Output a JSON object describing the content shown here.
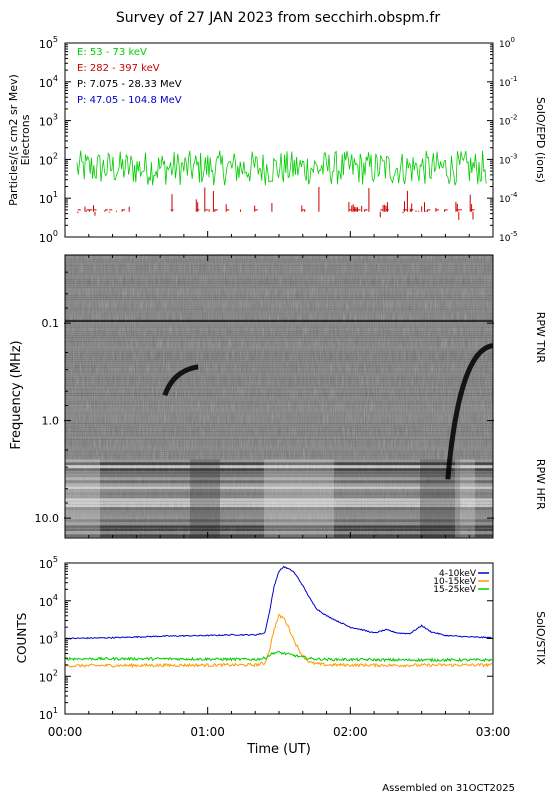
{
  "title": "Survey of 27 JAN 2023 from secchirh.obspm.fr",
  "footer": "Assembled on 31OCT2025",
  "chart_data": [
    {
      "type": "line",
      "panel": "epd",
      "ylabel": "Particles/(s cm2 sr Mev)",
      "ylabel2": "Electrons",
      "y_scale": "log",
      "ylim": [
        1,
        100000
      ],
      "y_ticks": [
        {
          "base": "10",
          "exp": "0"
        },
        {
          "base": "10",
          "exp": "1"
        },
        {
          "base": "10",
          "exp": "2"
        },
        {
          "base": "10",
          "exp": "3"
        },
        {
          "base": "10",
          "exp": "4"
        },
        {
          "base": "10",
          "exp": "5"
        }
      ],
      "right_axis": {
        "label": "SoIO/EPD (ions)",
        "ylim": [
          1e-05,
          1
        ],
        "ticks": [
          {
            "base": "10",
            "exp": "-5"
          },
          {
            "base": "10",
            "exp": "-4"
          },
          {
            "base": "10",
            "exp": "-3"
          },
          {
            "base": "10",
            "exp": "-2"
          },
          {
            "base": "10",
            "exp": "-1"
          },
          {
            "base": "10",
            "exp": "0"
          }
        ]
      },
      "legend_placement": "top-left",
      "series": [
        {
          "name": "E: 53 - 73 keV",
          "color": "#00cc00",
          "level": 60,
          "spread": 0.45,
          "coverage": [
            0,
            180
          ]
        },
        {
          "name": "E: 282 - 397 keV",
          "color": "#cc0000",
          "level": 5,
          "spread": 0.3,
          "coverage": "sparse",
          "dense_from": 117,
          "dense_to": 150
        },
        {
          "name": "P: 7.075 - 28.33 MeV",
          "color": "#000000"
        },
        {
          "name": "P: 47.05 - 104.8 MeV",
          "color": "#0000cc"
        }
      ]
    },
    {
      "type": "heatmap",
      "panel": "rpw",
      "ylabel": "Frequency (MHz)",
      "y_scale": "log",
      "y_inverted": true,
      "ylim": [
        0.02,
        16
      ],
      "y_ticks": [
        "0.1",
        "1.0",
        "10.0"
      ],
      "right_labels": [
        {
          "text": "RPW TNR",
          "freq": 0.14
        },
        {
          "text": "RPW HFR",
          "freq": 4.5
        }
      ],
      "colormap": "grayscale",
      "horizontal_line_mhz": 0.095,
      "bursts": [
        {
          "time_min": [
            42,
            56
          ],
          "freq_mhz": [
            0.55,
            0.28
          ]
        },
        {
          "time_min": [
            161,
            180
          ],
          "freq_mhz": [
            4,
            0.17
          ]
        }
      ]
    },
    {
      "type": "line",
      "panel": "stix",
      "ylabel": "COUNTS",
      "right_label": "SoIO/STIX",
      "y_scale": "log",
      "ylim": [
        10,
        100000
      ],
      "y_ticks": [
        {
          "base": "10",
          "exp": "1"
        },
        {
          "base": "10",
          "exp": "2"
        },
        {
          "base": "10",
          "exp": "3"
        },
        {
          "base": "10",
          "exp": "4"
        },
        {
          "base": "10",
          "exp": "5"
        }
      ],
      "xlabel": "Time (UT)",
      "x_ticks": [
        "00:00",
        "01:00",
        "02:00",
        "03:00"
      ],
      "xlim_min": [
        0,
        180
      ],
      "legend_placement": "top-right",
      "series": [
        {
          "name": "4-10keV",
          "color": "#0000cc",
          "x": [
            0,
            20,
            40,
            60,
            70,
            80,
            84,
            86,
            88,
            90,
            92,
            94,
            96,
            98,
            100,
            102,
            104,
            106,
            110,
            115,
            120,
            125,
            130,
            135,
            140,
            145,
            148,
            150,
            152,
            154,
            156,
            158,
            160,
            165,
            170,
            180
          ],
          "y": [
            1000,
            1050,
            1150,
            1200,
            1250,
            1250,
            1400,
            5000,
            25000,
            60000,
            80000,
            70000,
            60000,
            40000,
            25000,
            15000,
            9000,
            6000,
            4000,
            2800,
            2000,
            1700,
            1400,
            1700,
            1400,
            1350,
            1800,
            2200,
            1800,
            1500,
            1400,
            1300,
            1200,
            1150,
            1100,
            1050
          ]
        },
        {
          "name": "10-15keV",
          "color": "#ff9900",
          "x": [
            0,
            40,
            80,
            84,
            86,
            88,
            90,
            92,
            94,
            96,
            98,
            100,
            102,
            104,
            110,
            140,
            180
          ],
          "y": [
            190,
            195,
            200,
            220,
            500,
            1800,
            4000,
            3500,
            2000,
            1000,
            550,
            350,
            260,
            220,
            200,
            195,
            200
          ]
        },
        {
          "name": "15-25keV",
          "color": "#00cc00",
          "x": [
            0,
            40,
            80,
            84,
            86,
            88,
            90,
            92,
            94,
            96,
            100,
            104,
            110,
            140,
            180
          ],
          "y": [
            290,
            290,
            280,
            300,
            360,
            420,
            430,
            400,
            380,
            360,
            320,
            290,
            280,
            270,
            270
          ]
        }
      ]
    }
  ]
}
